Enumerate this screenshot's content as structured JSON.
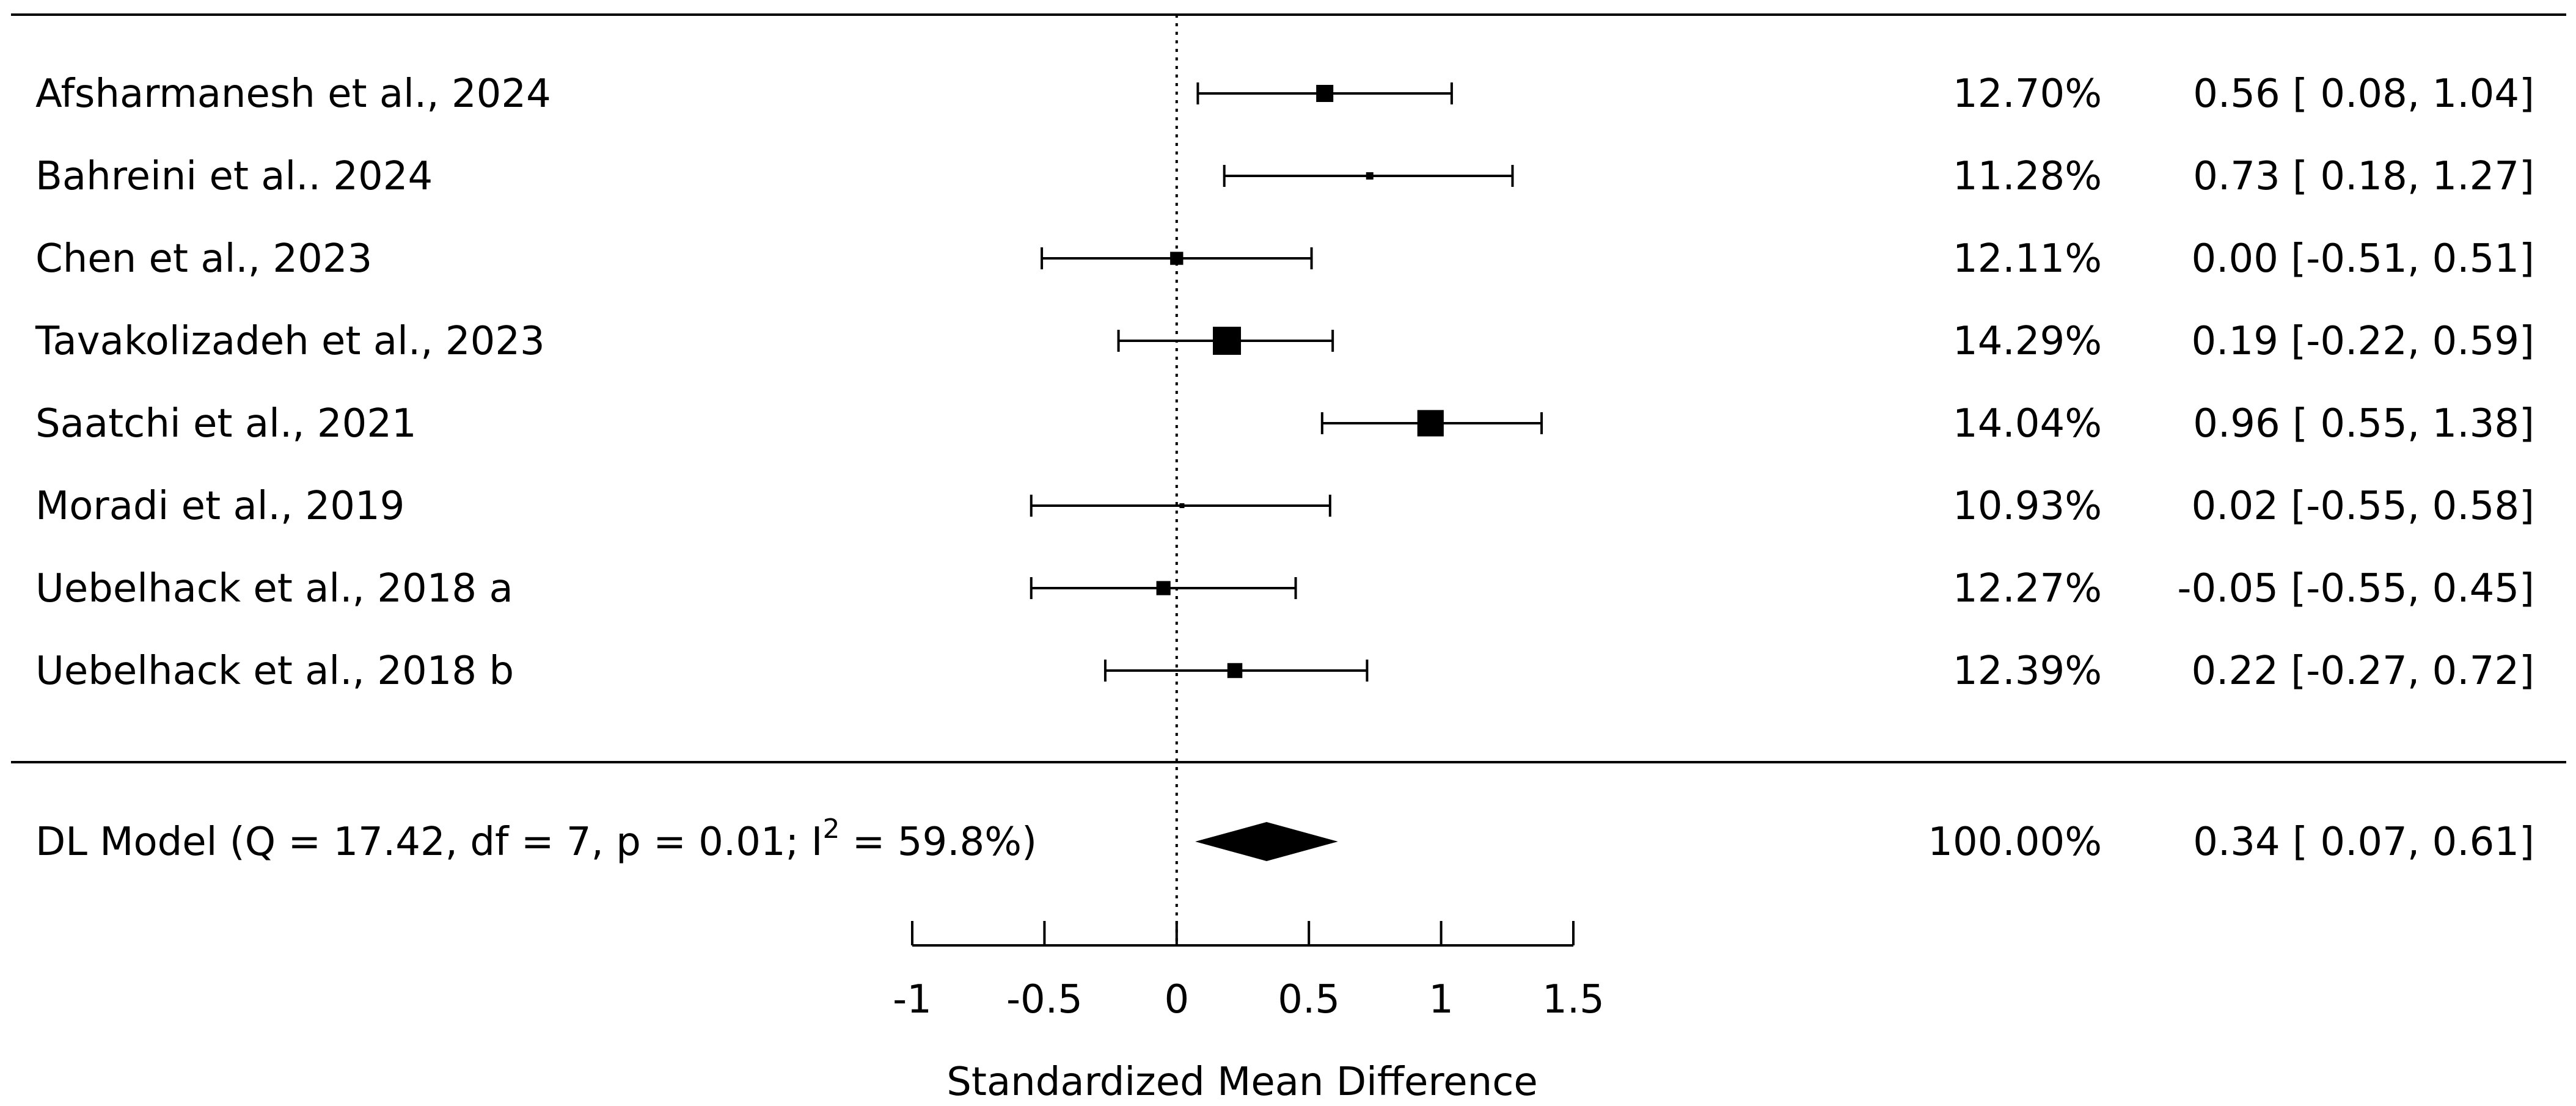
{
  "chart_data": {
    "type": "forest",
    "xlabel": "Standardized Mean Difference",
    "xlim": [
      -1,
      1.5
    ],
    "xticks": [
      -1,
      -0.5,
      0,
      0.5,
      1,
      1.5
    ],
    "xtick_labels": [
      "-1",
      "-0.5",
      "0",
      "0.5",
      "1",
      "1.5"
    ],
    "reference_line": 0,
    "studies": [
      {
        "label": "Afsharmanesh et al., 2024",
        "estimate": 0.56,
        "lower": 0.08,
        "upper": 1.04,
        "weight": 12.7,
        "weight_text": "12.70%",
        "ci_text": "0.56 [ 0.08, 1.04]"
      },
      {
        "label": "Bahreini et al.. 2024",
        "estimate": 0.73,
        "lower": 0.18,
        "upper": 1.27,
        "weight": 11.28,
        "weight_text": "11.28%",
        "ci_text": "0.73 [ 0.18, 1.27]"
      },
      {
        "label": "Chen et al., 2023",
        "estimate": 0.0,
        "lower": -0.51,
        "upper": 0.51,
        "weight": 12.11,
        "weight_text": "12.11%",
        "ci_text": "0.00 [-0.51, 0.51]"
      },
      {
        "label": "Tavakolizadeh et al., 2023",
        "estimate": 0.19,
        "lower": -0.22,
        "upper": 0.59,
        "weight": 14.29,
        "weight_text": "14.29%",
        "ci_text": "0.19 [-0.22, 0.59]"
      },
      {
        "label": "Saatchi et al., 2021",
        "estimate": 0.96,
        "lower": 0.55,
        "upper": 1.38,
        "weight": 14.04,
        "weight_text": "14.04%",
        "ci_text": "0.96 [ 0.55, 1.38]"
      },
      {
        "label": "Moradi et al., 2019",
        "estimate": 0.02,
        "lower": -0.55,
        "upper": 0.58,
        "weight": 10.93,
        "weight_text": "10.93%",
        "ci_text": "0.02 [-0.55, 0.58]"
      },
      {
        "label": "Uebelhack et al., 2018 a",
        "estimate": -0.05,
        "lower": -0.55,
        "upper": 0.45,
        "weight": 12.27,
        "weight_text": "12.27%",
        "ci_text": "-0.05 [-0.55, 0.45]"
      },
      {
        "label": "Uebelhack et al., 2018 b",
        "estimate": 0.22,
        "lower": -0.27,
        "upper": 0.72,
        "weight": 12.39,
        "weight_text": "12.39%",
        "ci_text": "0.22 [-0.27, 0.72]"
      }
    ],
    "summary": {
      "label_main": "DL Model (Q = 17.42, df = 7, p = 0.01; I",
      "label_sup": "2",
      "label_end": " = 59.8%)",
      "estimate": 0.34,
      "lower": 0.07,
      "upper": 0.61,
      "weight_text": "100.00%",
      "ci_text": "0.34 [ 0.07, 0.61]"
    }
  }
}
